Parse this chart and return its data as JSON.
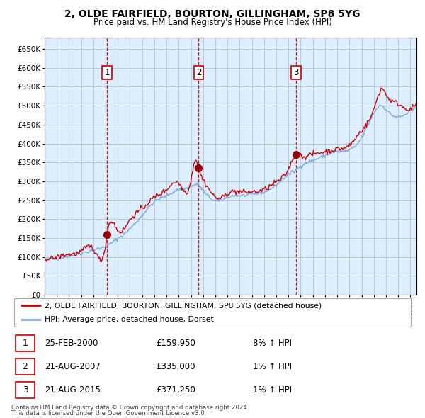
{
  "title1": "2, OLDE FAIRFIELD, BOURTON, GILLINGHAM, SP8 5YG",
  "title2": "Price paid vs. HM Land Registry's House Price Index (HPI)",
  "sale_prices": [
    159950,
    335000,
    371250
  ],
  "sale_labels": [
    "1",
    "2",
    "3"
  ],
  "sale_label_years": [
    2000.12,
    2007.63,
    2015.63
  ],
  "legend_line1": "2, OLDE FAIRFIELD, BOURTON, GILLINGHAM, SP8 5YG (detached house)",
  "legend_line2": "HPI: Average price, detached house, Dorset",
  "table_rows": [
    [
      "1",
      "25-FEB-2000",
      "£159,950",
      "8% ↑ HPI"
    ],
    [
      "2",
      "21-AUG-2007",
      "£335,000",
      "1% ↑ HPI"
    ],
    [
      "3",
      "21-AUG-2015",
      "£371,250",
      "1% ↑ HPI"
    ]
  ],
  "footnote1": "Contains HM Land Registry data © Crown copyright and database right 2024.",
  "footnote2": "This data is licensed under the Open Government Licence v3.0.",
  "hpi_line_color": "#7aaadd",
  "price_line_color": "#cc0000",
  "sale_marker_color": "#990000",
  "dashed_line_color": "#cc0000",
  "background_color": "#ddeeff",
  "grid_color": "#aabbcc",
  "ylim": [
    0,
    680000
  ],
  "yticks": [
    0,
    50000,
    100000,
    150000,
    200000,
    250000,
    300000,
    350000,
    400000,
    450000,
    500000,
    550000,
    600000,
    650000
  ],
  "start_year": 1995.0,
  "end_year": 2025.5
}
